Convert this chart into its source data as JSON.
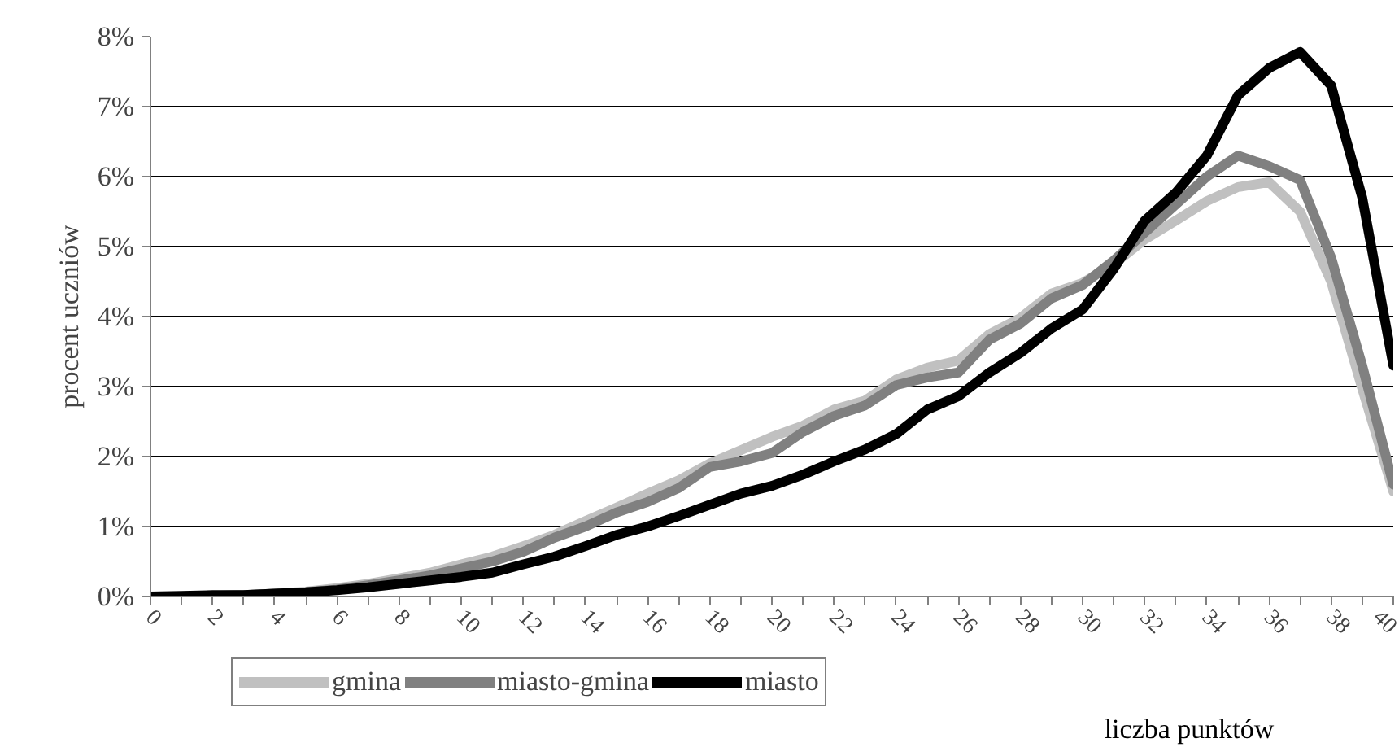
{
  "chart_data": {
    "type": "line",
    "xlabel": "liczba punktów",
    "ylabel": "procent uczniów",
    "x": [
      0,
      1,
      2,
      3,
      4,
      5,
      6,
      7,
      8,
      9,
      10,
      11,
      12,
      13,
      14,
      15,
      16,
      17,
      18,
      19,
      20,
      21,
      22,
      23,
      24,
      25,
      26,
      27,
      28,
      29,
      30,
      31,
      32,
      33,
      34,
      35,
      36,
      37,
      38,
      39,
      40
    ],
    "series": [
      {
        "name": "gmina",
        "color": "#c0c0c0",
        "values": [
          0,
          0,
          0.01,
          0.02,
          0.04,
          0.07,
          0.12,
          0.18,
          0.26,
          0.34,
          0.46,
          0.57,
          0.72,
          0.88,
          1.08,
          1.27,
          1.47,
          1.66,
          1.9,
          2.09,
          2.28,
          2.44,
          2.67,
          2.8,
          3.1,
          3.27,
          3.37,
          3.75,
          3.98,
          4.33,
          4.48,
          4.75,
          5.1,
          5.37,
          5.65,
          5.85,
          5.92,
          5.5,
          4.5,
          2.97,
          1.5
        ]
      },
      {
        "name": "miasto-gmina",
        "color": "#808080",
        "values": [
          0,
          0,
          0.01,
          0.02,
          0.04,
          0.06,
          0.1,
          0.16,
          0.23,
          0.3,
          0.4,
          0.5,
          0.64,
          0.84,
          1.0,
          1.2,
          1.35,
          1.55,
          1.85,
          1.93,
          2.05,
          2.35,
          2.58,
          2.73,
          3.02,
          3.13,
          3.2,
          3.67,
          3.9,
          4.26,
          4.45,
          4.8,
          5.2,
          5.6,
          6.0,
          6.3,
          6.15,
          5.95,
          4.84,
          3.3,
          1.6
        ]
      },
      {
        "name": "miasto",
        "color": "#000000",
        "values": [
          0,
          0.01,
          0.02,
          0.02,
          0.04,
          0.06,
          0.09,
          0.13,
          0.18,
          0.23,
          0.28,
          0.34,
          0.46,
          0.57,
          0.72,
          0.88,
          1.0,
          1.15,
          1.31,
          1.47,
          1.58,
          1.74,
          1.93,
          2.1,
          2.32,
          2.67,
          2.86,
          3.2,
          3.48,
          3.83,
          4.1,
          4.68,
          5.37,
          5.77,
          6.3,
          7.16,
          7.55,
          7.78,
          7.3,
          5.7,
          3.3
        ]
      }
    ],
    "xlim": [
      0,
      40
    ],
    "xticks": [
      0,
      {
        "value": 1,
        "label": null
      },
      2,
      {
        "value": 3,
        "label": null
      },
      4,
      {
        "value": 5,
        "label": null
      },
      6,
      {
        "value": 7,
        "label": null
      },
      8,
      {
        "value": 9,
        "label": null
      },
      10,
      {
        "value": 11,
        "label": null
      },
      12,
      {
        "value": 13,
        "label": null
      },
      14,
      {
        "value": 15,
        "label": null
      },
      16,
      {
        "value": 17,
        "label": null
      },
      18,
      {
        "value": 19,
        "label": null
      },
      20,
      {
        "value": 21,
        "label": null
      },
      22,
      {
        "value": 23,
        "label": null
      },
      24,
      {
        "value": 25,
        "label": null
      },
      26,
      {
        "value": 27,
        "label": null
      },
      28,
      {
        "value": 29,
        "label": null
      },
      30,
      {
        "value": 31,
        "label": null
      },
      32,
      {
        "value": 33,
        "label": null
      },
      34,
      {
        "value": 35,
        "label": null
      },
      36,
      {
        "value": 37,
        "label": null
      },
      38,
      {
        "value": 39,
        "label": null
      },
      40
    ],
    "ylim": [
      0,
      8
    ],
    "yticks": [
      {
        "value": 0,
        "label": "0%"
      },
      {
        "value": 1,
        "label": "1%"
      },
      {
        "value": 2,
        "label": "2%"
      },
      {
        "value": 3,
        "label": "3%"
      },
      {
        "value": 4,
        "label": "4%"
      },
      {
        "value": 5,
        "label": "5%"
      },
      {
        "value": 6,
        "label": "6%"
      },
      {
        "value": 7,
        "label": "7%"
      },
      {
        "value": 8,
        "label": "8%"
      }
    ],
    "grid": "y",
    "legend": "bottom",
    "marker": "none",
    "line_style": "solid"
  }
}
